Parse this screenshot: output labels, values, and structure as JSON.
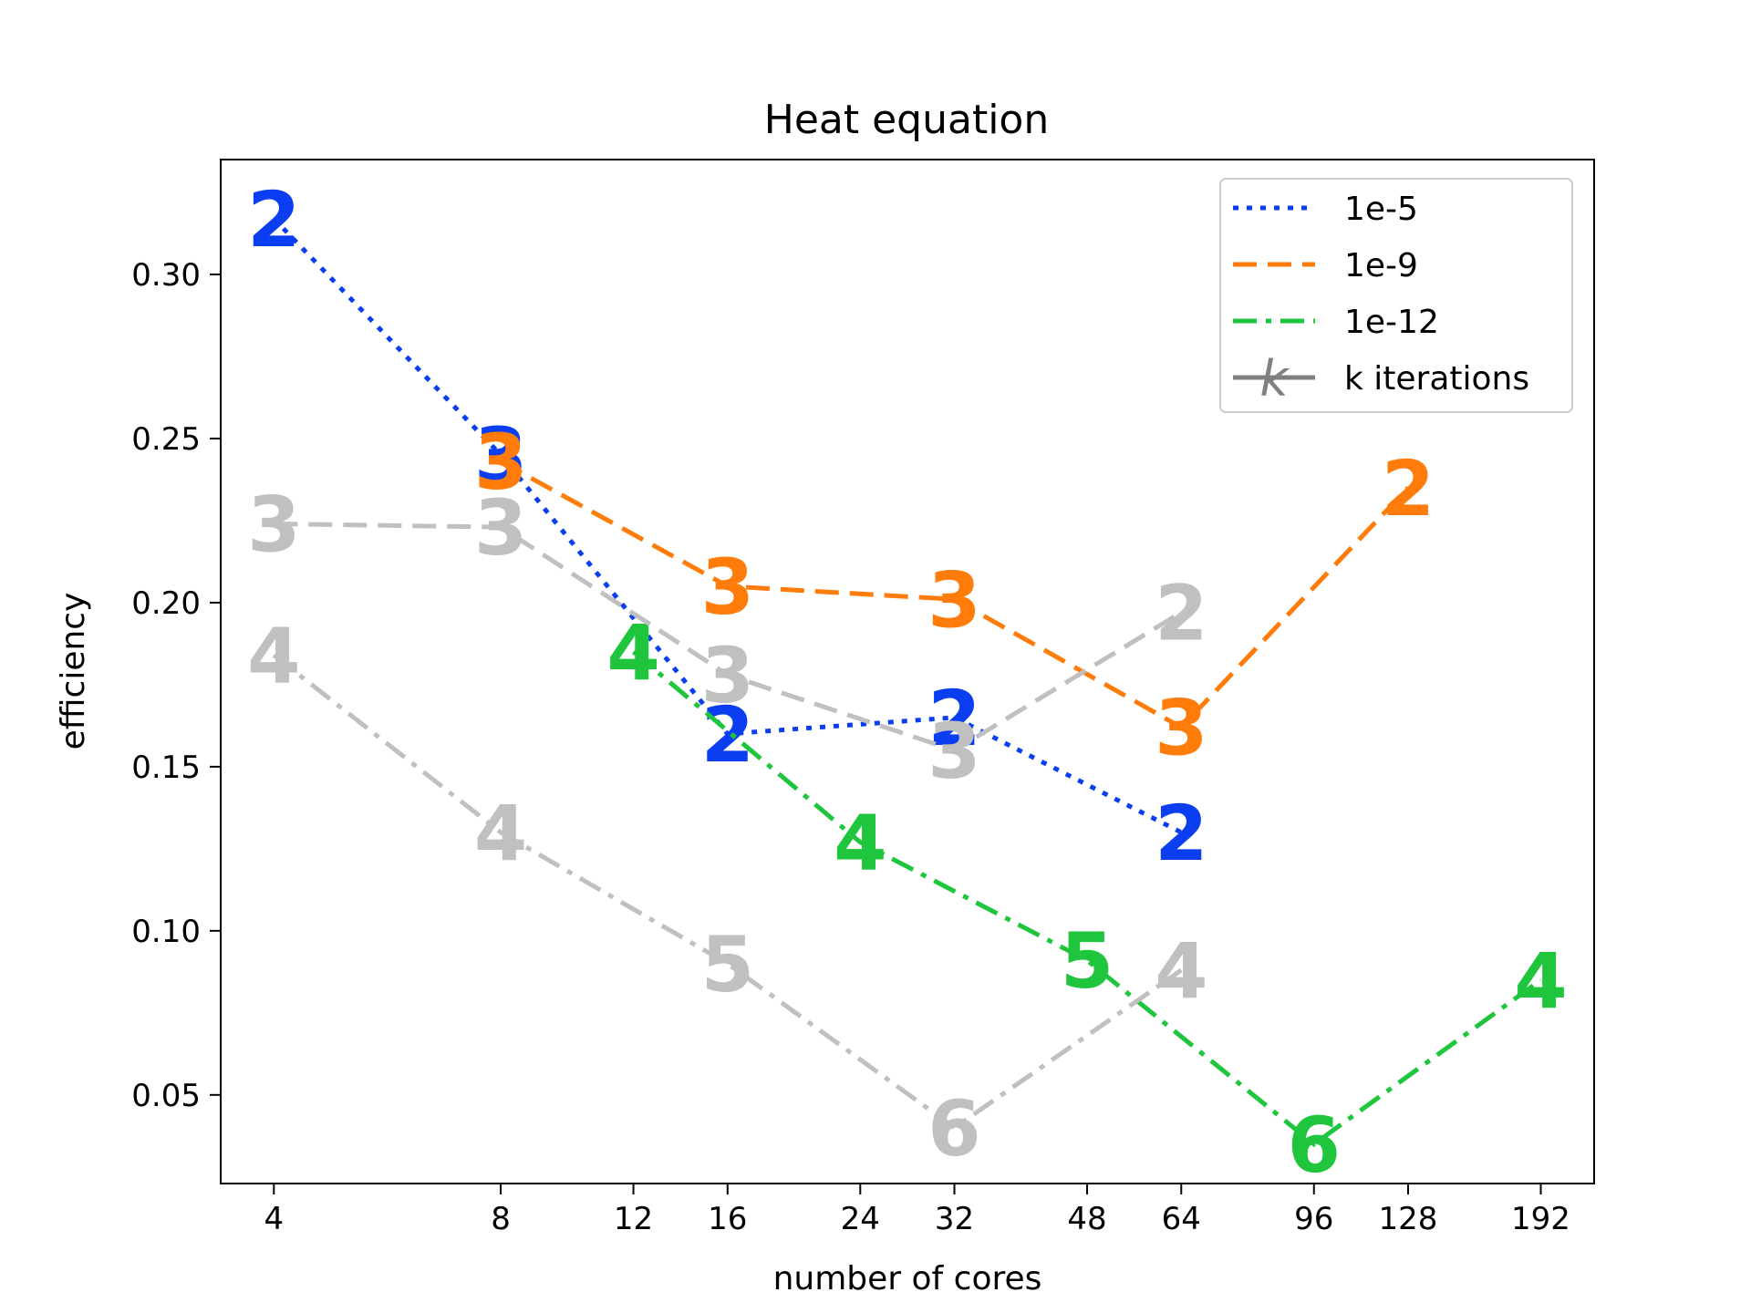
{
  "chart_data": {
    "type": "line",
    "title": "Heat equation",
    "xlabel": "number of cores",
    "ylabel": "efficiency",
    "x_scale": "log2",
    "x_ticks": [
      4,
      8,
      12,
      16,
      24,
      32,
      48,
      64,
      96,
      128,
      192
    ],
    "x_tick_labels": [
      "4",
      "8",
      "12",
      "16",
      "24",
      "32",
      "48",
      "64",
      "96",
      "128",
      "192"
    ],
    "xlim": [
      3.4,
      226
    ],
    "y_ticks": [
      0.05,
      0.1,
      0.15,
      0.2,
      0.25,
      0.3
    ],
    "y_tick_labels": [
      "0.05",
      "0.10",
      "0.15",
      "0.20",
      "0.25",
      "0.30"
    ],
    "ylim": [
      0.023,
      0.335
    ],
    "grid": false,
    "legend_position": "top-right",
    "legend": [
      {
        "label": "1e-5",
        "color": "#0b3ef0",
        "dash": "dotted"
      },
      {
        "label": "1e-9",
        "color": "#ff7c0a",
        "dash": "dashed"
      },
      {
        "label": "1e-12",
        "color": "#1fc63d",
        "dash": "dashdot"
      },
      {
        "label": "k iterations",
        "color": "#808080",
        "marker": "k"
      }
    ],
    "series": [
      {
        "name": "1e-5",
        "color": "#0b3ef0",
        "dash": "dotted",
        "x": [
          4,
          8,
          16,
          32,
          64
        ],
        "y": [
          0.317,
          0.245,
          0.16,
          0.165,
          0.13
        ],
        "labels": [
          "2",
          "3",
          "2",
          "2",
          "2"
        ]
      },
      {
        "name": "1e-9",
        "color": "#ff7c0a",
        "dash": "dashed",
        "x": [
          8,
          16,
          32,
          64,
          128
        ],
        "y": [
          0.243,
          0.205,
          0.201,
          0.162,
          0.235
        ],
        "labels": [
          "3",
          "3",
          "3",
          "3",
          "2"
        ]
      },
      {
        "name": "1e-12",
        "color": "#1fc63d",
        "dash": "dashdot",
        "x": [
          12,
          24,
          48,
          96,
          192
        ],
        "y": [
          0.185,
          0.127,
          0.091,
          0.035,
          0.085
        ],
        "labels": [
          "4",
          "4",
          "5",
          "6",
          "4"
        ]
      },
      {
        "color": "#c0c0c0",
        "dash": "dashed",
        "x": [
          4,
          8,
          16,
          32,
          64
        ],
        "y": [
          0.224,
          0.223,
          0.178,
          0.155,
          0.197
        ],
        "labels": [
          "3",
          "3",
          "3",
          "3",
          "2"
        ]
      },
      {
        "color": "#c0c0c0",
        "dash": "dashdot",
        "x": [
          4,
          8,
          16,
          32,
          64
        ],
        "y": [
          0.184,
          0.13,
          0.09,
          0.04,
          0.088
        ],
        "labels": [
          "4",
          "4",
          "5",
          "6",
          "4"
        ]
      }
    ]
  }
}
